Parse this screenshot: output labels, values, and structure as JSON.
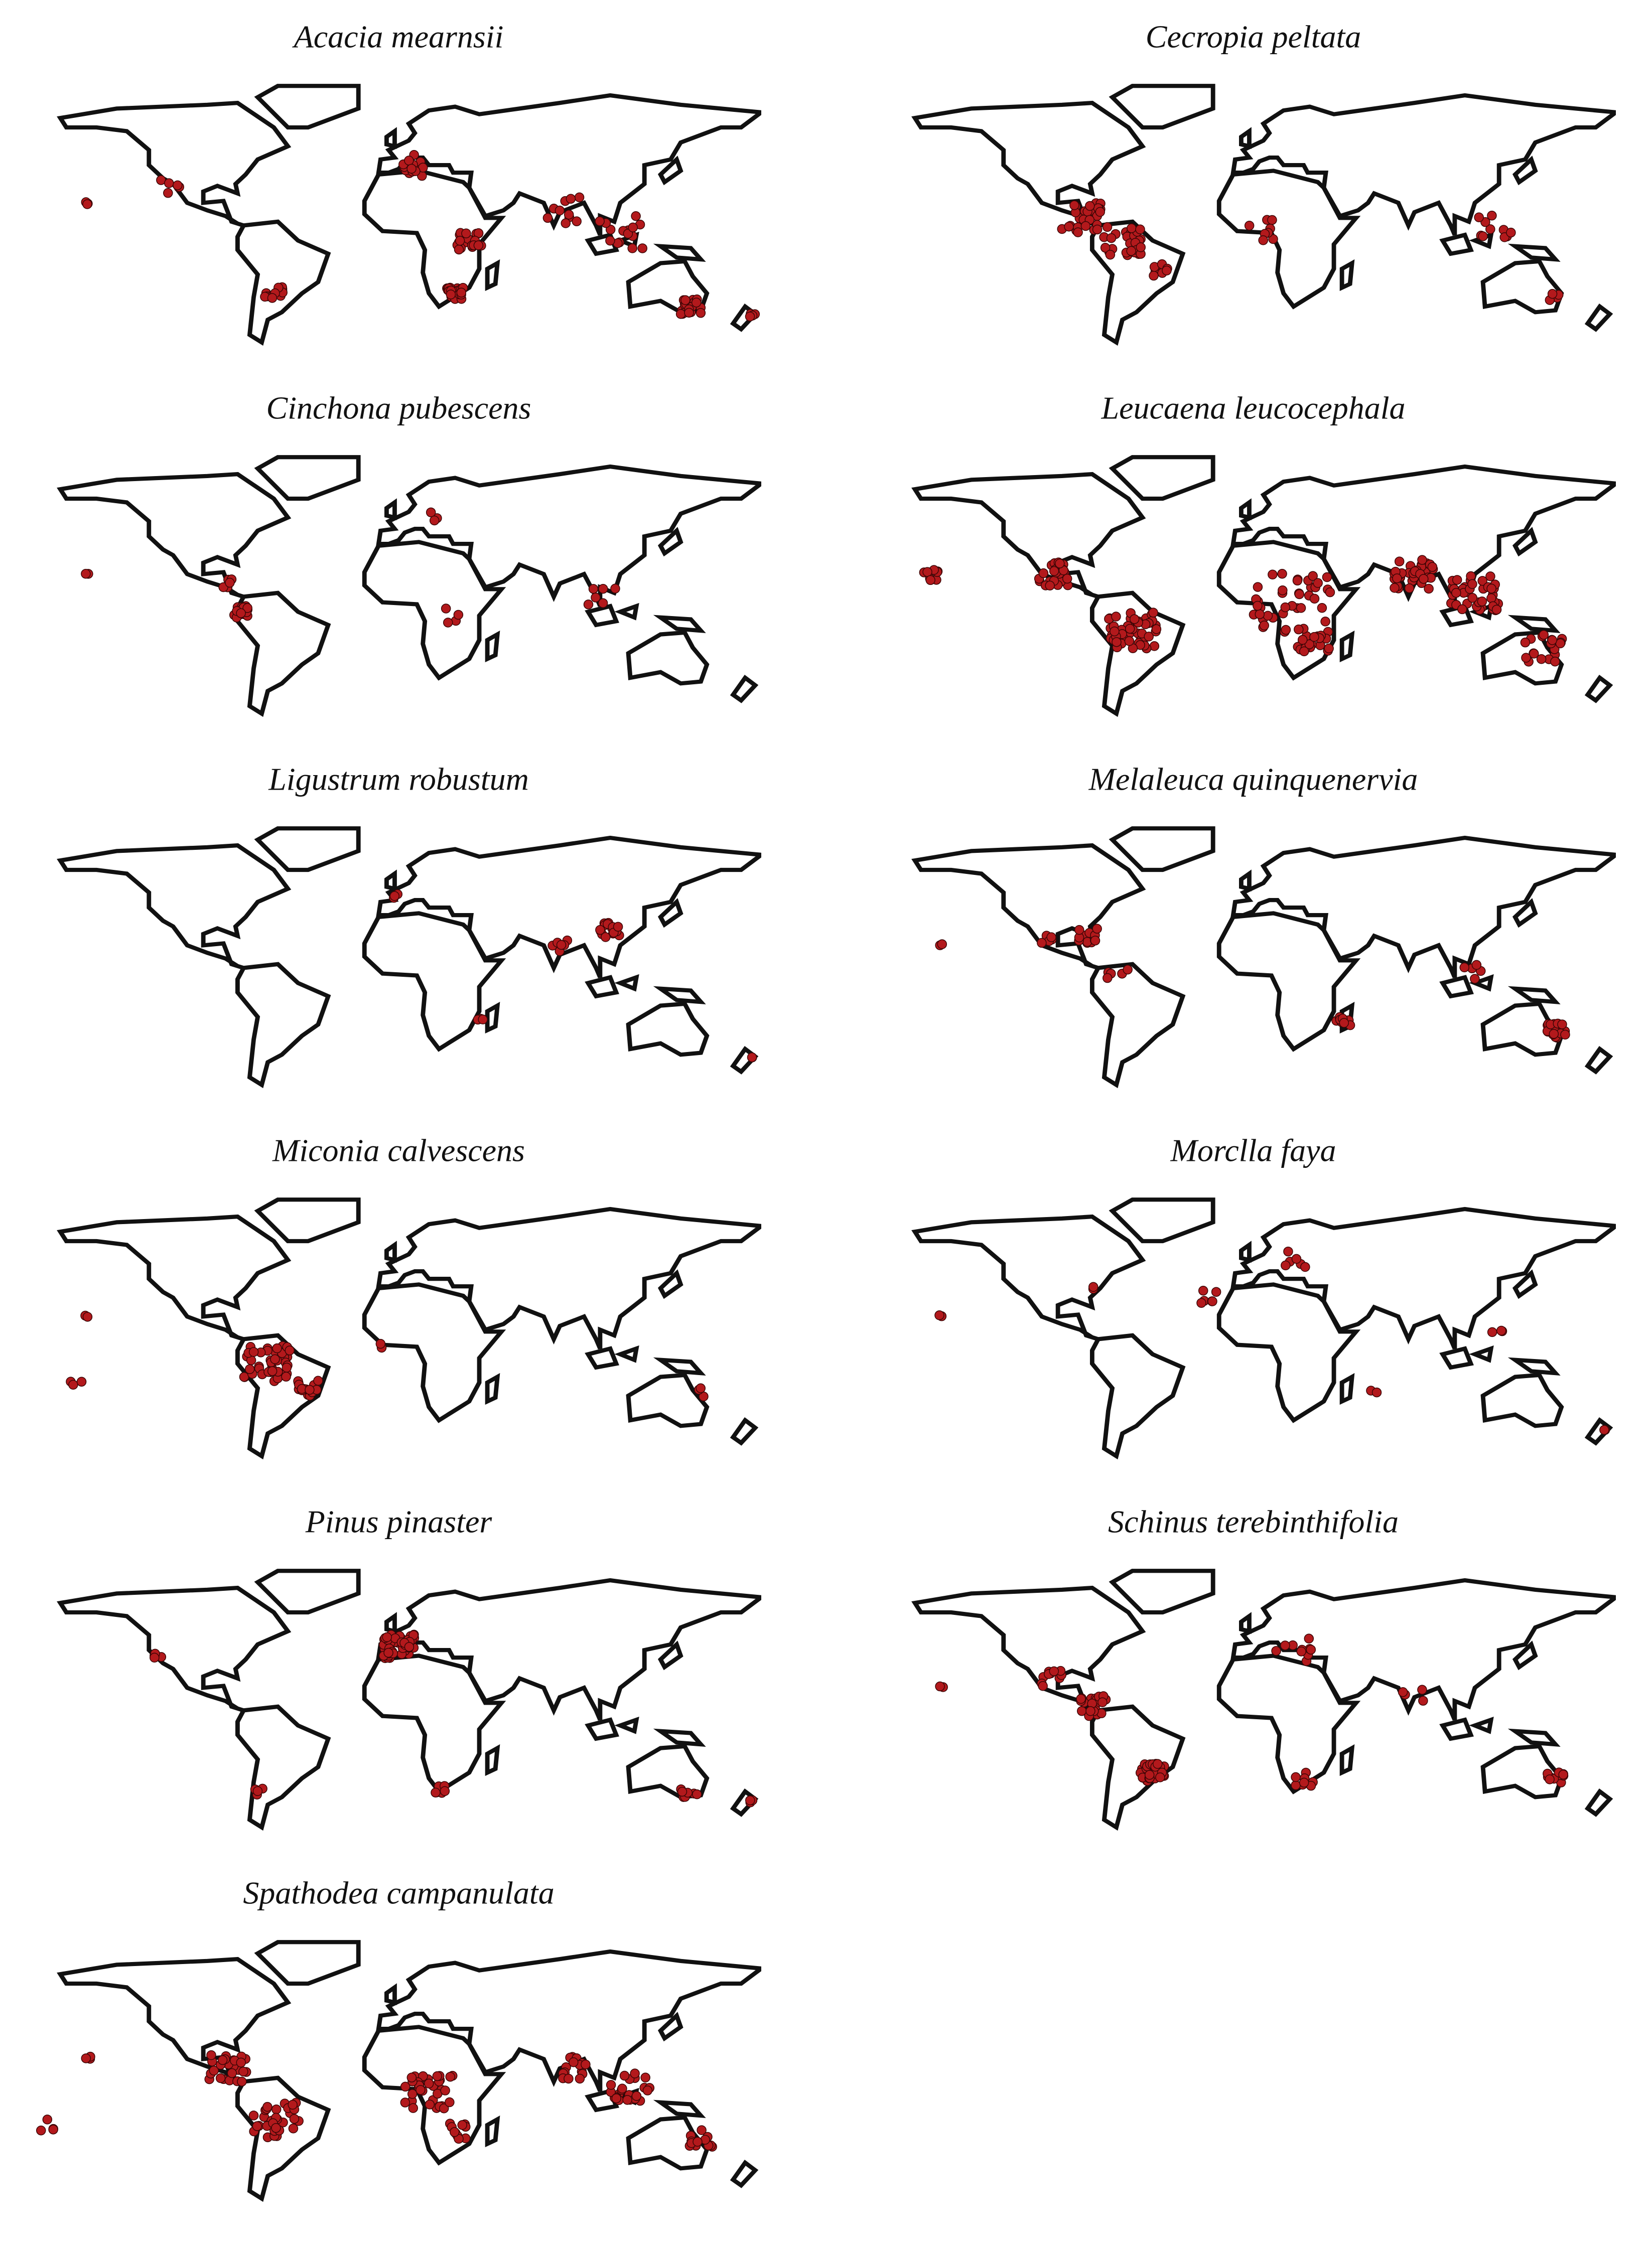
{
  "maps": [
    {
      "title": "Acacia mearnsii"
    },
    {
      "title": "Cecropia peltata"
    },
    {
      "title": "Cinchona pubescens"
    },
    {
      "title": "Leucaena leucocephala"
    },
    {
      "title": "Ligustrum robustum"
    },
    {
      "title": "Melaleuca quinquenervia"
    },
    {
      "title": "Miconia calvescens"
    },
    {
      "title": "Morclla faya"
    },
    {
      "title": "Pinus pinaster"
    },
    {
      "title": "Schinus terebinthifolia"
    },
    {
      "title": "Spathodea campanulata"
    }
  ]
}
